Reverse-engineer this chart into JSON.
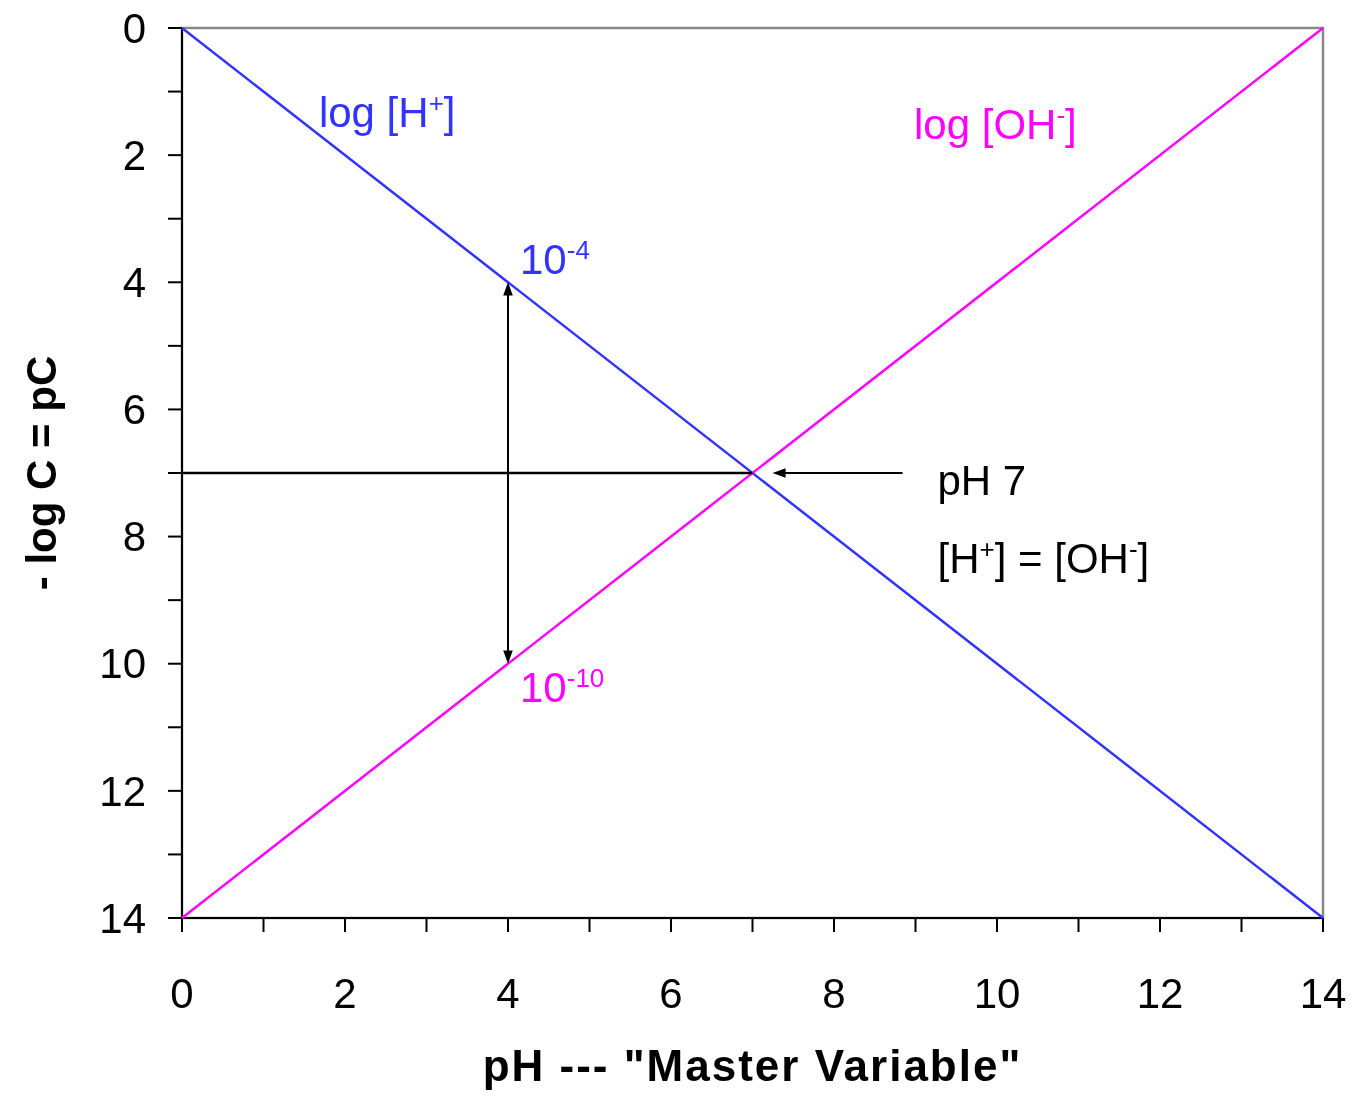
{
  "chart_data": {
    "type": "line",
    "xlabel": "pH  --- \"Master Variable\"",
    "ylabel": "- log C = pC",
    "x": [
      0,
      14
    ],
    "xlim": [
      0,
      14
    ],
    "ylim": [
      14,
      0
    ],
    "xticks": [
      0,
      {
        "value": 1,
        "label": null
      },
      2,
      {
        "value": 3,
        "label": null
      },
      4,
      {
        "value": 5,
        "label": null
      },
      6,
      {
        "value": 7,
        "label": null
      },
      8,
      {
        "value": 9,
        "label": null
      },
      10,
      {
        "value": 11,
        "label": null
      },
      12,
      {
        "value": 13,
        "label": null
      },
      14
    ],
    "yticks": [
      0,
      {
        "value": 1,
        "label": null
      },
      2,
      {
        "value": 3,
        "label": null
      },
      4,
      {
        "value": 5,
        "label": null
      },
      6,
      {
        "value": 7,
        "label": null
      },
      8,
      {
        "value": 9,
        "label": null
      },
      10,
      {
        "value": 11,
        "label": null
      },
      12,
      {
        "value": 13,
        "label": null
      },
      14
    ],
    "series": [
      {
        "name": "log [H$^{+}$]",
        "color": "#3333ff",
        "values": [
          0,
          14
        ]
      },
      {
        "name": "log [OH$^{-}$]",
        "color": "#ff00ff",
        "values": [
          14,
          0
        ]
      },
      {
        "type": "line",
        "color": "#000000",
        "x": [
          0,
          7
        ],
        "values": [
          7,
          7
        ]
      }
    ],
    "annotations": [
      {
        "text": "10$^{-4}$",
        "x": 4,
        "y": 4
      },
      {
        "text": "10$^{-10}$",
        "x": 4,
        "y": 10
      },
      "pH 7",
      "[H$^{+}$] = [OH$^{-}$]"
    ],
    "grid": false,
    "marker": "none",
    "line_style": "solid"
  }
}
